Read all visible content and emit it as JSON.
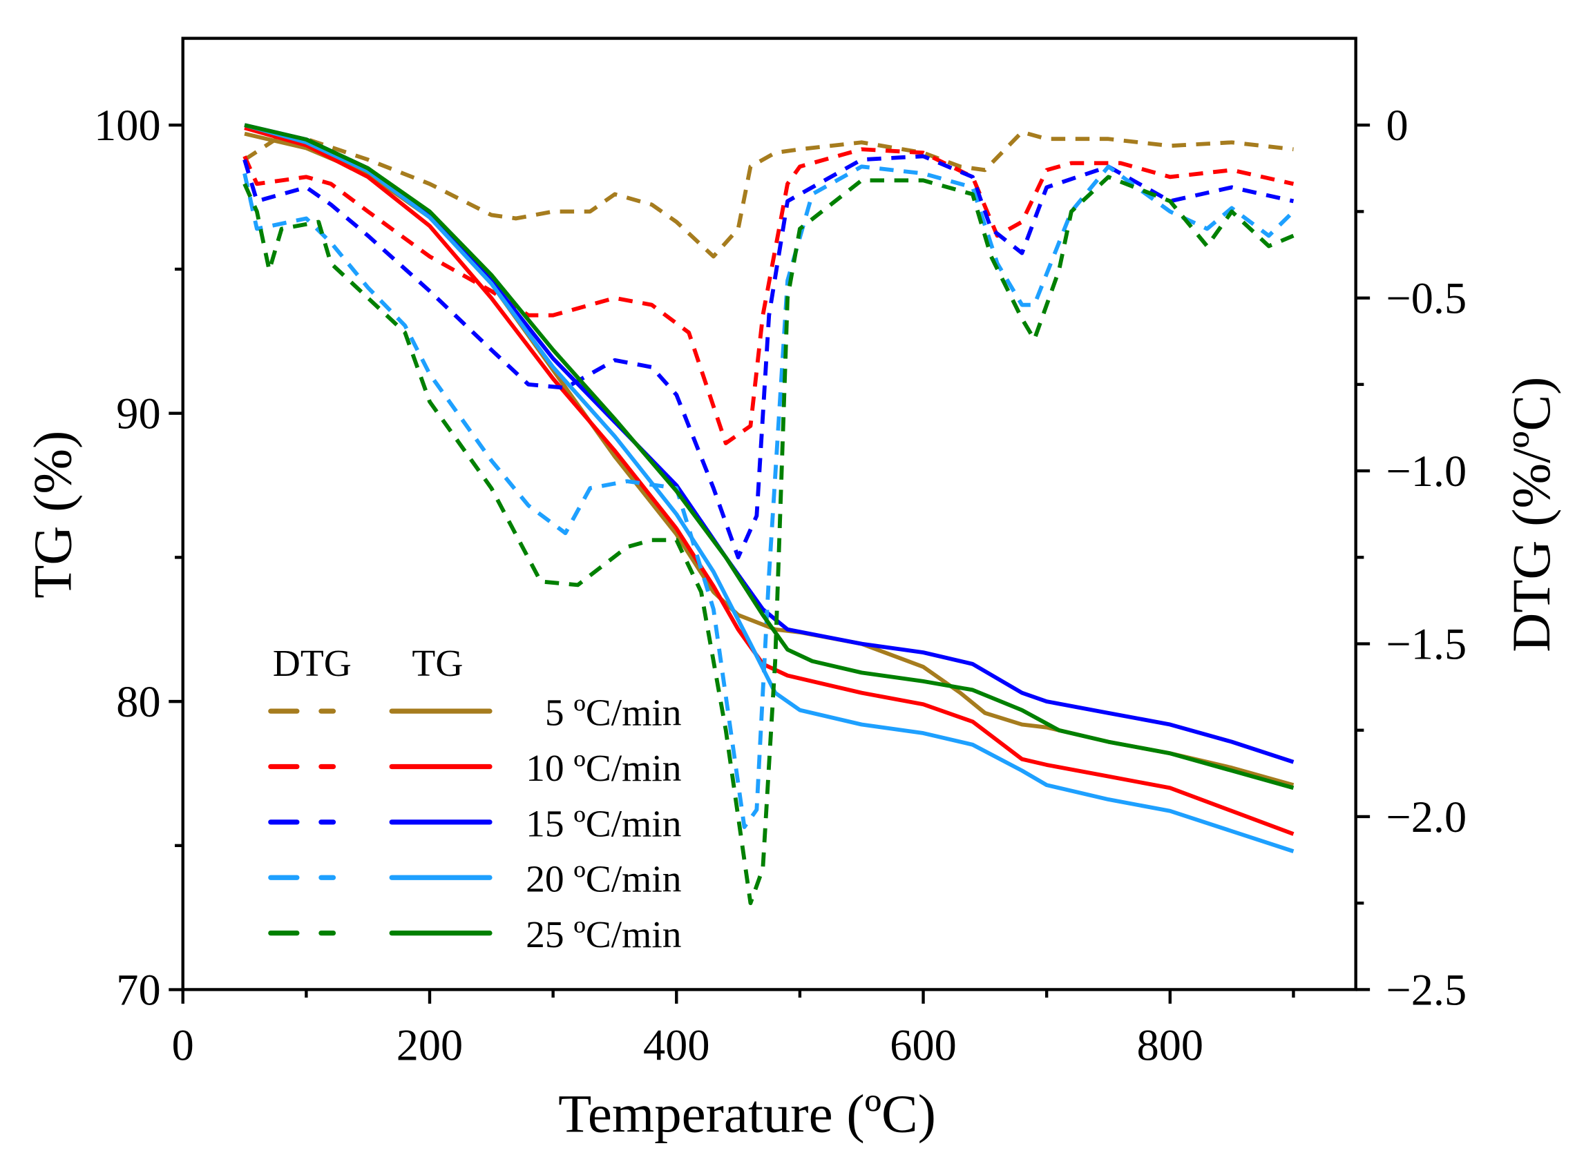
{
  "chart_data": {
    "type": "line",
    "title": "",
    "xlabel": "Temperature (ºC)",
    "ylabel": "TG (%)",
    "ylabel_right": "DTG (%/ºC)",
    "xlim": [
      0,
      950
    ],
    "ylim": [
      70,
      103
    ],
    "ylim_right": [
      -2.5,
      0.25
    ],
    "xticks": [
      0,
      200,
      400,
      600,
      800
    ],
    "yticks": [
      70,
      80,
      90,
      100
    ],
    "yticks_right": [
      -2.5,
      -2.0,
      -1.5,
      -1.0,
      -0.5,
      0
    ],
    "xtick_labels": [
      "0",
      "200",
      "400",
      "600",
      "800"
    ],
    "ytick_labels": [
      "70",
      "80",
      "90",
      "100"
    ],
    "ytick_right_labels": [
      "−2.5",
      "−2.0",
      "−1.5",
      "−1.0",
      "−0.5",
      "0"
    ],
    "grid": false,
    "legend": {
      "placement": "bottom-left",
      "header_dtg": "DTG",
      "header_tg": "TG"
    },
    "series": [
      {
        "name": "5  ºC/min",
        "color": "#A67C1E",
        "tg": [
          [
            50,
            99.7
          ],
          [
            100,
            99.2
          ],
          [
            150,
            98.3
          ],
          [
            200,
            96.8
          ],
          [
            250,
            94.5
          ],
          [
            300,
            91.5
          ],
          [
            350,
            88.5
          ],
          [
            400,
            85.8
          ],
          [
            430,
            83.8
          ],
          [
            450,
            83.0
          ],
          [
            480,
            82.5
          ],
          [
            500,
            82.4
          ],
          [
            550,
            82.0
          ],
          [
            600,
            81.2
          ],
          [
            630,
            80.3
          ],
          [
            650,
            79.6
          ],
          [
            680,
            79.2
          ],
          [
            700,
            79.1
          ],
          [
            750,
            78.6
          ],
          [
            800,
            78.2
          ],
          [
            850,
            77.7
          ],
          [
            900,
            77.1
          ]
        ],
        "dtg": [
          [
            50,
            -0.1
          ],
          [
            80,
            -0.03
          ],
          [
            100,
            -0.04
          ],
          [
            150,
            -0.1
          ],
          [
            200,
            -0.17
          ],
          [
            250,
            -0.26
          ],
          [
            270,
            -0.27
          ],
          [
            300,
            -0.25
          ],
          [
            330,
            -0.25
          ],
          [
            350,
            -0.2
          ],
          [
            380,
            -0.23
          ],
          [
            400,
            -0.28
          ],
          [
            430,
            -0.38
          ],
          [
            450,
            -0.3
          ],
          [
            460,
            -0.12
          ],
          [
            480,
            -0.08
          ],
          [
            500,
            -0.07
          ],
          [
            550,
            -0.05
          ],
          [
            600,
            -0.08
          ],
          [
            630,
            -0.12
          ],
          [
            650,
            -0.13
          ],
          [
            680,
            -0.02
          ],
          [
            700,
            -0.04
          ],
          [
            750,
            -0.04
          ],
          [
            800,
            -0.06
          ],
          [
            850,
            -0.05
          ],
          [
            900,
            -0.07
          ]
        ]
      },
      {
        "name": "10 ºC/min",
        "color": "#FF0000",
        "tg": [
          [
            50,
            99.9
          ],
          [
            100,
            99.3
          ],
          [
            150,
            98.2
          ],
          [
            200,
            96.5
          ],
          [
            250,
            94.0
          ],
          [
            300,
            91.2
          ],
          [
            350,
            88.7
          ],
          [
            400,
            86.0
          ],
          [
            430,
            84.0
          ],
          [
            450,
            82.5
          ],
          [
            470,
            81.3
          ],
          [
            490,
            80.9
          ],
          [
            550,
            80.3
          ],
          [
            600,
            79.9
          ],
          [
            640,
            79.3
          ],
          [
            680,
            78.0
          ],
          [
            700,
            77.8
          ],
          [
            750,
            77.4
          ],
          [
            800,
            77.0
          ],
          [
            850,
            76.2
          ],
          [
            900,
            75.4
          ]
        ],
        "dtg": [
          [
            50,
            -0.09
          ],
          [
            60,
            -0.17
          ],
          [
            100,
            -0.15
          ],
          [
            120,
            -0.17
          ],
          [
            150,
            -0.25
          ],
          [
            200,
            -0.38
          ],
          [
            250,
            -0.48
          ],
          [
            280,
            -0.55
          ],
          [
            300,
            -0.55
          ],
          [
            350,
            -0.5
          ],
          [
            380,
            -0.52
          ],
          [
            410,
            -0.6
          ],
          [
            440,
            -0.92
          ],
          [
            460,
            -0.87
          ],
          [
            470,
            -0.55
          ],
          [
            490,
            -0.17
          ],
          [
            500,
            -0.12
          ],
          [
            550,
            -0.07
          ],
          [
            600,
            -0.08
          ],
          [
            640,
            -0.15
          ],
          [
            660,
            -0.32
          ],
          [
            680,
            -0.28
          ],
          [
            700,
            -0.13
          ],
          [
            720,
            -0.11
          ],
          [
            760,
            -0.11
          ],
          [
            800,
            -0.15
          ],
          [
            850,
            -0.13
          ],
          [
            900,
            -0.17
          ]
        ]
      },
      {
        "name": "15 ºC/min",
        "color": "#0000FF",
        "tg": [
          [
            50,
            100.0
          ],
          [
            100,
            99.5
          ],
          [
            150,
            98.5
          ],
          [
            200,
            96.9
          ],
          [
            250,
            94.6
          ],
          [
            300,
            91.9
          ],
          [
            350,
            89.7
          ],
          [
            400,
            87.5
          ],
          [
            440,
            85.0
          ],
          [
            470,
            83.2
          ],
          [
            490,
            82.5
          ],
          [
            550,
            82.0
          ],
          [
            600,
            81.7
          ],
          [
            640,
            81.3
          ],
          [
            680,
            80.3
          ],
          [
            700,
            80.0
          ],
          [
            750,
            79.6
          ],
          [
            800,
            79.2
          ],
          [
            850,
            78.6
          ],
          [
            900,
            77.9
          ]
        ],
        "dtg": [
          [
            50,
            -0.1
          ],
          [
            60,
            -0.22
          ],
          [
            100,
            -0.18
          ],
          [
            120,
            -0.23
          ],
          [
            150,
            -0.32
          ],
          [
            200,
            -0.48
          ],
          [
            250,
            -0.65
          ],
          [
            280,
            -0.75
          ],
          [
            310,
            -0.76
          ],
          [
            350,
            -0.68
          ],
          [
            380,
            -0.7
          ],
          [
            400,
            -0.78
          ],
          [
            430,
            -1.05
          ],
          [
            450,
            -1.25
          ],
          [
            465,
            -1.13
          ],
          [
            475,
            -0.55
          ],
          [
            490,
            -0.22
          ],
          [
            510,
            -0.18
          ],
          [
            550,
            -0.1
          ],
          [
            600,
            -0.09
          ],
          [
            640,
            -0.15
          ],
          [
            655,
            -0.3
          ],
          [
            680,
            -0.37
          ],
          [
            700,
            -0.18
          ],
          [
            750,
            -0.12
          ],
          [
            800,
            -0.22
          ],
          [
            850,
            -0.18
          ],
          [
            900,
            -0.22
          ]
        ]
      },
      {
        "name": "20 ºC/min",
        "color": "#1EA0FF",
        "tg": [
          [
            50,
            100.0
          ],
          [
            100,
            99.4
          ],
          [
            150,
            98.4
          ],
          [
            200,
            96.8
          ],
          [
            250,
            94.5
          ],
          [
            300,
            91.6
          ],
          [
            350,
            89.2
          ],
          [
            400,
            86.5
          ],
          [
            430,
            84.5
          ],
          [
            460,
            82.0
          ],
          [
            480,
            80.3
          ],
          [
            500,
            79.7
          ],
          [
            550,
            79.2
          ],
          [
            600,
            78.9
          ],
          [
            640,
            78.5
          ],
          [
            680,
            77.6
          ],
          [
            700,
            77.1
          ],
          [
            750,
            76.6
          ],
          [
            800,
            76.2
          ],
          [
            850,
            75.5
          ],
          [
            900,
            74.8
          ]
        ],
        "dtg": [
          [
            50,
            -0.14
          ],
          [
            60,
            -0.3
          ],
          [
            100,
            -0.27
          ],
          [
            120,
            -0.34
          ],
          [
            150,
            -0.47
          ],
          [
            180,
            -0.58
          ],
          [
            200,
            -0.72
          ],
          [
            250,
            -0.97
          ],
          [
            280,
            -1.1
          ],
          [
            310,
            -1.18
          ],
          [
            330,
            -1.05
          ],
          [
            360,
            -1.03
          ],
          [
            400,
            -1.05
          ],
          [
            430,
            -1.4
          ],
          [
            455,
            -2.03
          ],
          [
            465,
            -1.98
          ],
          [
            475,
            -1.3
          ],
          [
            490,
            -0.45
          ],
          [
            510,
            -0.2
          ],
          [
            550,
            -0.12
          ],
          [
            600,
            -0.14
          ],
          [
            640,
            -0.18
          ],
          [
            660,
            -0.4
          ],
          [
            680,
            -0.52
          ],
          [
            690,
            -0.52
          ],
          [
            720,
            -0.25
          ],
          [
            750,
            -0.12
          ],
          [
            800,
            -0.25
          ],
          [
            830,
            -0.3
          ],
          [
            850,
            -0.24
          ],
          [
            880,
            -0.32
          ],
          [
            900,
            -0.25
          ]
        ]
      },
      {
        "name": "25 ºC/min",
        "color": "#008000",
        "tg": [
          [
            50,
            100.0
          ],
          [
            100,
            99.5
          ],
          [
            150,
            98.5
          ],
          [
            200,
            97.0
          ],
          [
            250,
            94.8
          ],
          [
            300,
            92.2
          ],
          [
            350,
            89.8
          ],
          [
            400,
            87.3
          ],
          [
            440,
            85.0
          ],
          [
            470,
            83.0
          ],
          [
            490,
            81.8
          ],
          [
            510,
            81.4
          ],
          [
            550,
            81.0
          ],
          [
            600,
            80.7
          ],
          [
            640,
            80.4
          ],
          [
            680,
            79.7
          ],
          [
            710,
            79.0
          ],
          [
            750,
            78.6
          ],
          [
            800,
            78.2
          ],
          [
            850,
            77.6
          ],
          [
            900,
            77.0
          ]
        ],
        "dtg": [
          [
            50,
            -0.17
          ],
          [
            60,
            -0.25
          ],
          [
            70,
            -0.42
          ],
          [
            80,
            -0.3
          ],
          [
            110,
            -0.28
          ],
          [
            120,
            -0.4
          ],
          [
            150,
            -0.5
          ],
          [
            180,
            -0.6
          ],
          [
            200,
            -0.8
          ],
          [
            250,
            -1.05
          ],
          [
            290,
            -1.32
          ],
          [
            320,
            -1.33
          ],
          [
            360,
            -1.22
          ],
          [
            380,
            -1.2
          ],
          [
            400,
            -1.2
          ],
          [
            420,
            -1.35
          ],
          [
            440,
            -1.75
          ],
          [
            460,
            -2.25
          ],
          [
            470,
            -2.15
          ],
          [
            480,
            -1.55
          ],
          [
            490,
            -0.5
          ],
          [
            500,
            -0.3
          ],
          [
            550,
            -0.16
          ],
          [
            600,
            -0.16
          ],
          [
            640,
            -0.2
          ],
          [
            655,
            -0.38
          ],
          [
            680,
            -0.56
          ],
          [
            690,
            -0.62
          ],
          [
            710,
            -0.42
          ],
          [
            720,
            -0.25
          ],
          [
            750,
            -0.15
          ],
          [
            800,
            -0.22
          ],
          [
            830,
            -0.35
          ],
          [
            850,
            -0.25
          ],
          [
            880,
            -0.35
          ],
          [
            900,
            -0.32
          ]
        ]
      }
    ]
  }
}
